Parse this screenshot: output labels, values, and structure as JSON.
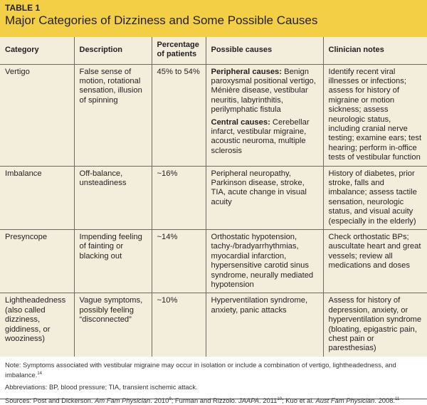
{
  "title": {
    "label": "TABLE 1",
    "text": "Major Categories of Dizziness and Some Possible Causes"
  },
  "colors": {
    "header": "#f3cf45",
    "body": "#f3eddc"
  },
  "columns": [
    "Category",
    "Description",
    "Percentage of patients",
    "Possible causes",
    "Clinician notes"
  ],
  "rows": [
    {
      "category": "Vertigo",
      "description": "False sense of motion, rotational sensation, illusion of spinning",
      "percentage": "45% to 54%",
      "causes": [
        {
          "head": "Peripheral causes:",
          "text": " Benign paroxysmal positional vertigo, Ménière disease, vestibular neuritis, labyrinthitis, perilymphatic fistula"
        },
        {
          "head": "Central causes:",
          "text": " Cerebellar infarct, vestibular migraine, acoustic neuroma, multiple sclerosis"
        }
      ],
      "notes": "Identify recent viral illnesses or infections; assess for history of migraine or motion sickness; assess neurologic status, including cranial nerve testing; examine ears; test hearing; perform in-office tests of vestibular function"
    },
    {
      "category": "Imbalance",
      "description": "Off-balance, unsteadiness",
      "percentage": "~16%",
      "causes_text": "Peripheral neuropathy, Parkinson disease, stroke, TIA, acute change in visual acuity",
      "notes": "History of diabetes, prior stroke, falls and imbalance; assess tactile sensation, neurologic status, and visual acuity (especially in the elderly)"
    },
    {
      "category": "Presyncope",
      "description": "Impending feeling of fainting or blacking out",
      "percentage": "~14%",
      "causes_text": "Orthostatic hypotension, tachy-/bradyarrhythmias, myocardial infarction, hypersensitive carotid sinus syndrome, neurally mediated hypotension",
      "notes": "Check orthostatic BPs; auscultate heart and great vessels; review all medications and doses"
    },
    {
      "category": "Lightheadedness (also called dizziness, giddiness, or wooziness)",
      "description": "Vague symptoms, possibly feeling “disconnected”",
      "percentage": "~10%",
      "causes_text": "Hyperventilation syndrome, anxiety, panic attacks",
      "notes": "Assess for history of depression, anxiety, or hyperventilation syndrome (bloating, epigastric pain, chest pain or paresthesias)"
    }
  ],
  "footnotes": {
    "note": "Note: Symptoms associated with vestibular migraine may occur in isolation or include a combination of vertigo, lightheadedness, and imbalance.",
    "note_ref": "14",
    "abbreviations": "Abbreviations: BP, blood pressure; TIA, transient ischemic attack.",
    "sources": {
      "prefix": "Sources: Post and Dickerson. ",
      "j1": "Am Fam Physician",
      "y1": ". 2010",
      "r1": "9",
      "m2": "; Furman and Rizzolo. ",
      "j2": "JAAPA",
      "y2": ". 2011",
      "r2": "10",
      "m3": "; Kuo et al. ",
      "j3": "Aust Fam Physician",
      "y3": ". 2008.",
      "r3": "11"
    }
  }
}
